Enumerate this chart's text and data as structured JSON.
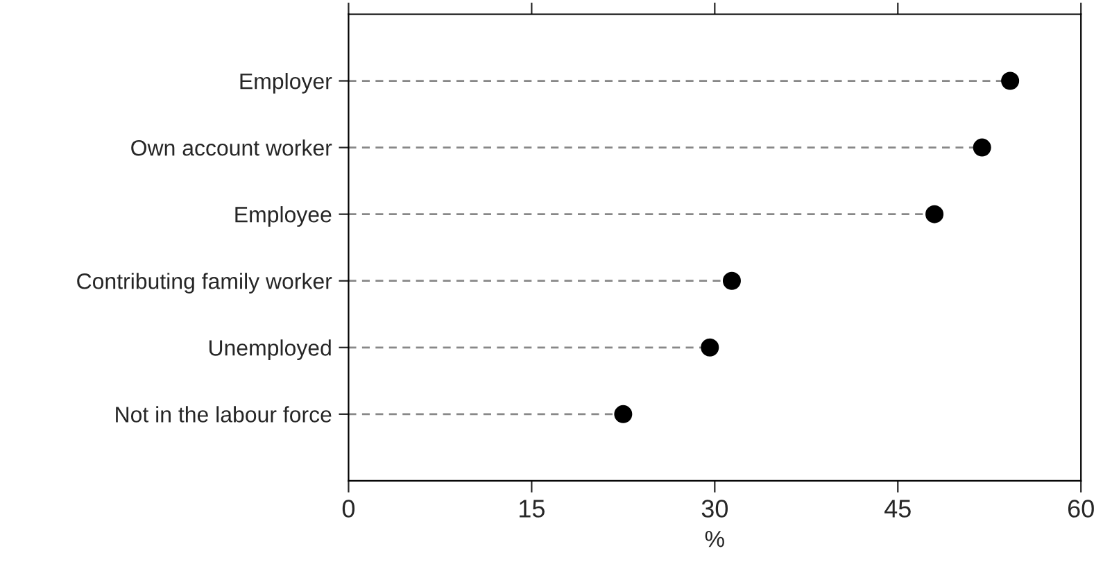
{
  "chart_data": {
    "type": "lollipop",
    "orientation": "horizontal",
    "xlabel": "%",
    "categories": [
      "Employer",
      "Own account worker",
      "Employee",
      "Contributing family worker",
      "Unemployed",
      "Not in the labour force"
    ],
    "values": [
      54.2,
      51.9,
      48.0,
      31.4,
      29.6,
      22.5
    ],
    "color": "#000000",
    "marker": "circle",
    "line_style": "dashed",
    "xlim": [
      0,
      60
    ],
    "xticks": [
      0,
      15,
      30,
      45,
      60
    ],
    "grid": false,
    "legend": false
  }
}
